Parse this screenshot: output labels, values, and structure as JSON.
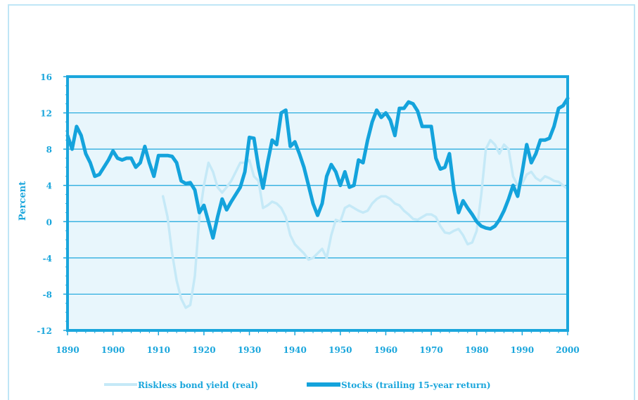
{
  "chart_data": {
    "type": "line",
    "title": "",
    "xlabel": "",
    "ylabel": "Percent",
    "xlim": [
      1890,
      2000
    ],
    "ylim": [
      -12,
      16
    ],
    "x_ticks": [
      1890,
      1900,
      1910,
      1920,
      1930,
      1940,
      1950,
      1960,
      1970,
      1980,
      1990,
      2000
    ],
    "y_ticks": [
      -12,
      -8,
      -4,
      0,
      4,
      8,
      12,
      16
    ],
    "grid": "horizontal",
    "legend_position": "bottom",
    "colors": {
      "axis": "#1aa6dc",
      "plot_bg": "#e8f6fc",
      "grid": "#1aa6dc",
      "bond": "#c5e9f7",
      "stocks": "#14a3dc"
    },
    "series": [
      {
        "name": "Riskless bond yield (real)",
        "color": "#c5e9f7",
        "x": [
          1911,
          1912,
          1913,
          1914,
          1915,
          1916,
          1917,
          1918,
          1919,
          1920,
          1921,
          1922,
          1923,
          1924,
          1925,
          1926,
          1927,
          1928,
          1929,
          1930,
          1931,
          1932,
          1933,
          1934,
          1935,
          1936,
          1937,
          1938,
          1939,
          1940,
          1941,
          1942,
          1943,
          1944,
          1945,
          1946,
          1947,
          1948,
          1949,
          1950,
          1951,
          1952,
          1953,
          1954,
          1955,
          1956,
          1957,
          1958,
          1959,
          1960,
          1961,
          1962,
          1963,
          1964,
          1965,
          1966,
          1967,
          1968,
          1969,
          1970,
          1971,
          1972,
          1973,
          1974,
          1975,
          1976,
          1977,
          1978,
          1979,
          1980,
          1981,
          1982,
          1983,
          1984,
          1985,
          1986,
          1987,
          1988,
          1989,
          1990,
          1991,
          1992,
          1993,
          1994,
          1995,
          1996,
          1997,
          1998,
          1999,
          2000
        ],
        "values": [
          2.8,
          0.5,
          -3.5,
          -6.5,
          -8.5,
          -9.5,
          -9.2,
          -6.0,
          0.5,
          4.0,
          6.5,
          5.5,
          3.8,
          3.2,
          3.8,
          4.5,
          5.5,
          6.5,
          6.5,
          6.8,
          5.0,
          4.5,
          1.5,
          1.8,
          2.2,
          2.0,
          1.5,
          0.5,
          -1.5,
          -2.5,
          -3.0,
          -3.5,
          -4.2,
          -4.0,
          -3.5,
          -3.0,
          -4.0,
          -1.5,
          0.2,
          0.0,
          1.5,
          1.8,
          1.5,
          1.2,
          1.0,
          1.2,
          2.0,
          2.5,
          2.8,
          2.8,
          2.5,
          2.0,
          1.8,
          1.2,
          0.8,
          0.3,
          0.2,
          0.5,
          0.8,
          0.8,
          0.5,
          -0.5,
          -1.2,
          -1.3,
          -1.0,
          -0.8,
          -1.5,
          -2.5,
          -2.3,
          -1.0,
          3.0,
          8.0,
          9.0,
          8.5,
          7.5,
          8.5,
          8.0,
          5.0,
          4.0,
          4.2,
          5.2,
          5.5,
          4.8,
          4.5,
          5.0,
          4.8,
          4.5,
          4.4,
          4.0,
          3.6
        ]
      },
      {
        "name": "Stocks (trailing 15-year return)",
        "color": "#14a3dc",
        "x": [
          1890,
          1891,
          1892,
          1893,
          1894,
          1895,
          1896,
          1897,
          1898,
          1899,
          1900,
          1901,
          1902,
          1903,
          1904,
          1905,
          1906,
          1907,
          1908,
          1909,
          1910,
          1911,
          1912,
          1913,
          1914,
          1915,
          1916,
          1917,
          1918,
          1919,
          1920,
          1921,
          1922,
          1923,
          1924,
          1925,
          1926,
          1927,
          1928,
          1929,
          1930,
          1931,
          1932,
          1933,
          1934,
          1935,
          1936,
          1937,
          1938,
          1939,
          1940,
          1941,
          1942,
          1943,
          1944,
          1945,
          1946,
          1947,
          1948,
          1949,
          1950,
          1951,
          1952,
          1953,
          1954,
          1955,
          1956,
          1957,
          1958,
          1959,
          1960,
          1961,
          1962,
          1963,
          1964,
          1965,
          1966,
          1967,
          1968,
          1969,
          1970,
          1971,
          1972,
          1973,
          1974,
          1975,
          1976,
          1977,
          1978,
          1979,
          1980,
          1981,
          1982,
          1983,
          1984,
          1985,
          1986,
          1987,
          1988,
          1989,
          1990,
          1991,
          1992,
          1993,
          1994,
          1995,
          1996,
          1997,
          1998,
          1999,
          2000
        ],
        "values": [
          9.5,
          8.0,
          10.5,
          9.5,
          7.5,
          6.5,
          5.0,
          5.2,
          6.0,
          6.8,
          7.8,
          7.0,
          6.8,
          7.0,
          7.0,
          6.0,
          6.5,
          8.3,
          6.5,
          5.0,
          7.3,
          7.3,
          7.3,
          7.2,
          6.5,
          4.5,
          4.2,
          4.3,
          3.5,
          1.0,
          1.8,
          0.0,
          -1.8,
          0.5,
          2.5,
          1.3,
          2.2,
          3.0,
          3.8,
          5.5,
          9.3,
          9.2,
          6.0,
          3.7,
          6.5,
          9.0,
          8.5,
          12.0,
          12.3,
          8.3,
          8.8,
          7.5,
          6.0,
          4.0,
          2.0,
          0.7,
          2.0,
          5.0,
          6.3,
          5.5,
          4.0,
          5.5,
          3.8,
          4.0,
          6.8,
          6.5,
          9.0,
          11.0,
          12.3,
          11.5,
          12.0,
          11.2,
          9.5,
          12.5,
          12.5,
          13.2,
          13.0,
          12.2,
          10.5,
          10.5,
          10.5,
          7.0,
          5.8,
          6.0,
          7.5,
          3.5,
          1.0,
          2.3,
          1.5,
          0.8,
          0.0,
          -0.5,
          -0.7,
          -0.8,
          -0.5,
          0.2,
          1.2,
          2.5,
          4.0,
          2.8,
          5.5,
          8.5,
          6.5,
          7.5,
          9.0,
          9.0,
          9.2,
          10.5,
          12.5,
          12.8,
          13.6
        ]
      }
    ]
  }
}
